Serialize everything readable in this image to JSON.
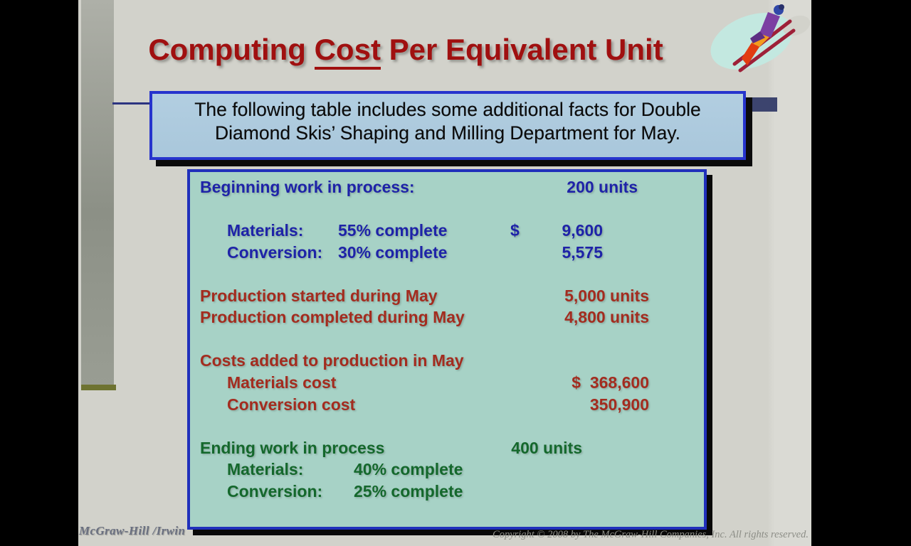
{
  "slide": {
    "title": {
      "pre": "Computing ",
      "underlined": "Cost",
      "post": " Per Equivalent Unit"
    },
    "instruction": {
      "line1": "The following table includes some additional facts for Double",
      "line2": "Diamond Skis’ Shaping and Milling Department for May."
    }
  },
  "table": {
    "lines": [
      {
        "label": "Beginning work in process:",
        "value": "200 units",
        "style": "blue",
        "indent": 0,
        "valcol": "blue-units"
      },
      {
        "blank": true
      },
      {
        "label": "Materials:",
        "mid": "55% complete",
        "midcol": "blue",
        "cur": "$",
        "value": "9,600",
        "style": "blue",
        "indent": 1,
        "valcol": "blue-money"
      },
      {
        "label": "Conversion:",
        "mid": "30% complete",
        "midcol": "blue",
        "value": "5,575",
        "style": "blue",
        "indent": 1,
        "valcol": "blue-money"
      },
      {
        "blank": true
      },
      {
        "label": "Production started during May",
        "value": "5,000 units",
        "style": "red",
        "indent": 0,
        "valcol": "red-units"
      },
      {
        "label": "Production completed during May",
        "value": "4,800 units",
        "style": "red",
        "indent": 0,
        "valcol": "red-units"
      },
      {
        "blank": true
      },
      {
        "label": "Costs added to production in May",
        "style": "red",
        "indent": 0
      },
      {
        "label": "Materials cost",
        "value": "$  368,600",
        "style": "red",
        "indent": 1,
        "valcol": "red-money"
      },
      {
        "label": "Conversion cost",
        "value": "350,900",
        "style": "red",
        "indent": 1,
        "valcol": "red-money"
      },
      {
        "blank": true
      },
      {
        "label": "Ending work in process",
        "value": "400 units",
        "style": "green",
        "indent": 0,
        "valcol": "green-units"
      },
      {
        "label": "Materials:",
        "mid": "40% complete",
        "midcol": "green",
        "style": "green",
        "indent": 1
      },
      {
        "label": "Conversion:",
        "mid": "25% complete",
        "midcol": "green",
        "style": "green",
        "indent": 1
      }
    ]
  },
  "footer": {
    "brand": "McGraw-Hill /Irwin",
    "copyright": "Copyright © 2008 by The McGraw-Hill Companies, Inc. All rights reserved."
  },
  "icons": {
    "logo": "ski-jumper-icon"
  },
  "colors": {
    "title_red": "#a01010",
    "text_blue": "#1e23a8",
    "text_red": "#a32c1f",
    "text_green": "#14682c",
    "table_bg": "#a7d2c6",
    "box_border_blue": "#2432c6",
    "instruction_bg": "#accadd",
    "slide_bg": "#d2d2cb",
    "accent_navy": "#3c446e",
    "bar_olive": "#6e7331"
  }
}
